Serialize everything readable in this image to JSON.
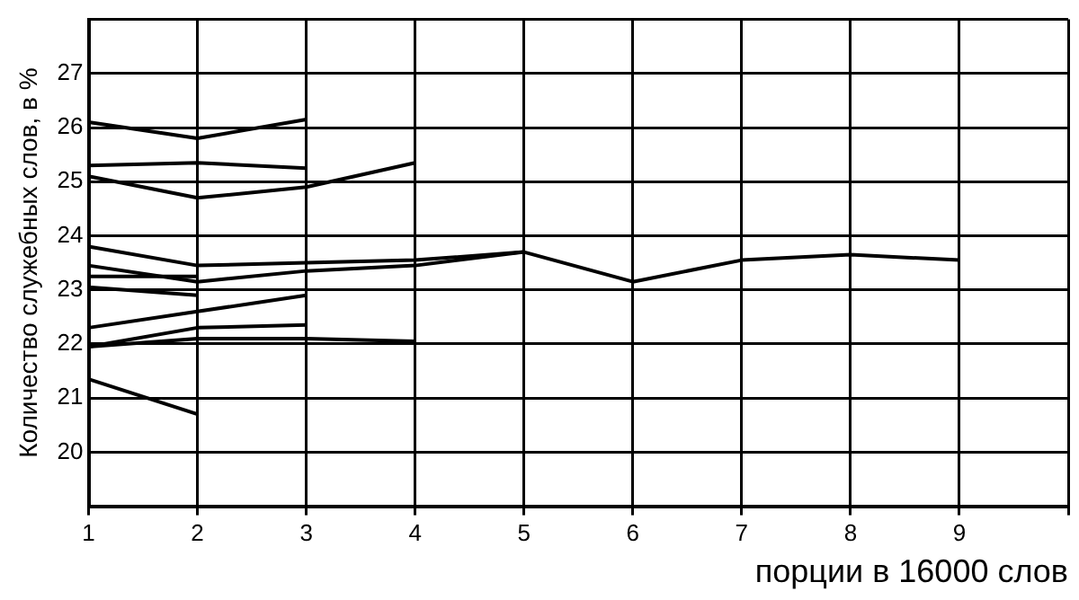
{
  "chart_data": {
    "type": "line",
    "xlabel": "порции в 16000 слов",
    "ylabel": "Количество служебных слов, в %",
    "xlim": [
      1,
      10
    ],
    "xticks": [
      1,
      2,
      3,
      4,
      5,
      6,
      7,
      8,
      9,
      {
        "value": 10,
        "label": null
      }
    ],
    "ylim": [
      19,
      28
    ],
    "yticks": [
      {
        "value": 19,
        "label": null
      },
      20,
      21,
      22,
      23,
      24,
      25,
      26,
      27,
      {
        "value": 28,
        "label": null
      }
    ],
    "grid": true,
    "legend": false,
    "marker": "none",
    "line_style": "solid",
    "series": [
      {
        "color": "#000000",
        "x": [
          1,
          2,
          3
        ],
        "values": [
          26.1,
          25.8,
          26.15
        ]
      },
      {
        "color": "#000000",
        "x": [
          1,
          2,
          3
        ],
        "values": [
          25.3,
          25.35,
          25.25
        ]
      },
      {
        "color": "#000000",
        "x": [
          1,
          2,
          3,
          4
        ],
        "values": [
          25.1,
          24.7,
          24.9,
          25.35
        ]
      },
      {
        "color": "#000000",
        "x": [
          1,
          2,
          3,
          4,
          5
        ],
        "values": [
          23.8,
          23.45,
          23.5,
          23.55,
          23.7
        ]
      },
      {
        "color": "#000000",
        "x": [
          1,
          2,
          3,
          4,
          5,
          6,
          7,
          8,
          9
        ],
        "values": [
          23.45,
          23.15,
          23.35,
          23.45,
          23.7,
          23.15,
          23.55,
          23.65,
          23.55
        ]
      },
      {
        "color": "#000000",
        "x": [
          1,
          2
        ],
        "values": [
          23.25,
          23.25
        ]
      },
      {
        "color": "#000000",
        "x": [
          1,
          2
        ],
        "values": [
          23.05,
          22.9
        ]
      },
      {
        "color": "#000000",
        "x": [
          1,
          2,
          3
        ],
        "values": [
          22.3,
          22.6,
          22.9
        ]
      },
      {
        "color": "#000000",
        "x": [
          1,
          2,
          3
        ],
        "values": [
          21.95,
          22.3,
          22.35
        ]
      },
      {
        "color": "#000000",
        "x": [
          1,
          2,
          3,
          4
        ],
        "values": [
          21.95,
          22.1,
          22.1,
          22.05
        ]
      },
      {
        "color": "#000000",
        "x": [
          1,
          2
        ],
        "values": [
          21.35,
          20.7
        ]
      }
    ]
  }
}
